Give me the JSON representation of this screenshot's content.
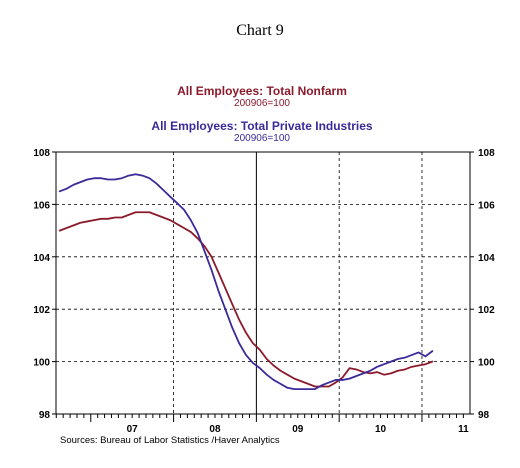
{
  "chart_number": "Chart 9",
  "colors": {
    "nonfarm": "#8B1A2B",
    "private": "#3A2A9A",
    "axis": "#000000",
    "grid": "#000000",
    "background": "#ffffff"
  },
  "chart_data": {
    "type": "line",
    "grid": true,
    "grid_style": "dashed",
    "ylim": [
      98,
      108
    ],
    "xlim": [
      2006.58,
      2011.58
    ],
    "yticks": [
      98,
      100,
      102,
      104,
      106,
      108
    ],
    "xticks": [
      {
        "label": "07",
        "at": 2007.5
      },
      {
        "label": "08",
        "at": 2008.5
      },
      {
        "label": "09",
        "at": 2009.5
      },
      {
        "label": "10",
        "at": 2010.5
      },
      {
        "label": "11",
        "at": 2011.5
      }
    ],
    "year_dividers": [
      2008,
      2009,
      2010,
      2011
    ],
    "solid_divider": 2009,
    "series": [
      {
        "name": "All Employees: Total Nonfarm",
        "subtitle": "200906=100",
        "color_key": "nonfarm",
        "x": [
          2006.625,
          2006.708,
          2006.792,
          2006.875,
          2006.958,
          2007.042,
          2007.125,
          2007.208,
          2007.292,
          2007.375,
          2007.458,
          2007.542,
          2007.625,
          2007.708,
          2007.792,
          2007.875,
          2007.958,
          2008.042,
          2008.125,
          2008.208,
          2008.292,
          2008.375,
          2008.458,
          2008.542,
          2008.625,
          2008.708,
          2008.792,
          2008.875,
          2008.958,
          2009.042,
          2009.125,
          2009.208,
          2009.292,
          2009.375,
          2009.458,
          2009.542,
          2009.625,
          2009.708,
          2009.792,
          2009.875,
          2009.958,
          2010.042,
          2010.125,
          2010.208,
          2010.292,
          2010.375,
          2010.458,
          2010.542,
          2010.625,
          2010.708,
          2010.792,
          2010.875,
          2010.958,
          2011.042,
          2011.125
        ],
        "values": [
          105.0,
          105.1,
          105.2,
          105.3,
          105.35,
          105.4,
          105.45,
          105.45,
          105.5,
          105.5,
          105.6,
          105.7,
          105.7,
          105.7,
          105.6,
          105.5,
          105.4,
          105.25,
          105.1,
          104.95,
          104.7,
          104.4,
          104.0,
          103.4,
          102.8,
          102.2,
          101.6,
          101.1,
          100.7,
          100.45,
          100.1,
          99.85,
          99.65,
          99.5,
          99.35,
          99.25,
          99.15,
          99.05,
          99.05,
          99.05,
          99.2,
          99.4,
          99.75,
          99.7,
          99.6,
          99.55,
          99.6,
          99.5,
          99.55,
          99.65,
          99.7,
          99.8,
          99.85,
          99.9,
          100.0
        ]
      },
      {
        "name": "All Employees: Total Private Industries",
        "subtitle": "200906=100",
        "color_key": "private",
        "x": [
          2006.625,
          2006.708,
          2006.792,
          2006.875,
          2006.958,
          2007.042,
          2007.125,
          2007.208,
          2007.292,
          2007.375,
          2007.458,
          2007.542,
          2007.625,
          2007.708,
          2007.792,
          2007.875,
          2007.958,
          2008.042,
          2008.125,
          2008.208,
          2008.292,
          2008.375,
          2008.458,
          2008.542,
          2008.625,
          2008.708,
          2008.792,
          2008.875,
          2008.958,
          2009.042,
          2009.125,
          2009.208,
          2009.292,
          2009.375,
          2009.458,
          2009.542,
          2009.625,
          2009.708,
          2009.792,
          2009.875,
          2009.958,
          2010.042,
          2010.125,
          2010.208,
          2010.292,
          2010.375,
          2010.458,
          2010.542,
          2010.625,
          2010.708,
          2010.792,
          2010.875,
          2010.958,
          2011.042,
          2011.125
        ],
        "values": [
          106.5,
          106.6,
          106.75,
          106.85,
          106.95,
          107.0,
          107.0,
          106.95,
          106.95,
          107.0,
          107.1,
          107.15,
          107.1,
          107.0,
          106.8,
          106.55,
          106.3,
          106.05,
          105.8,
          105.4,
          104.9,
          104.2,
          103.5,
          102.7,
          102.0,
          101.3,
          100.7,
          100.25,
          99.95,
          99.75,
          99.5,
          99.3,
          99.15,
          99.0,
          98.95,
          98.95,
          98.95,
          98.95,
          99.1,
          99.2,
          99.3,
          99.3,
          99.35,
          99.45,
          99.55,
          99.65,
          99.8,
          99.9,
          100.0,
          100.1,
          100.15,
          100.25,
          100.35,
          100.2,
          100.4
        ]
      }
    ]
  },
  "source_text": "Sources:  Bureau of Labor Statistics /Haver Analytics"
}
